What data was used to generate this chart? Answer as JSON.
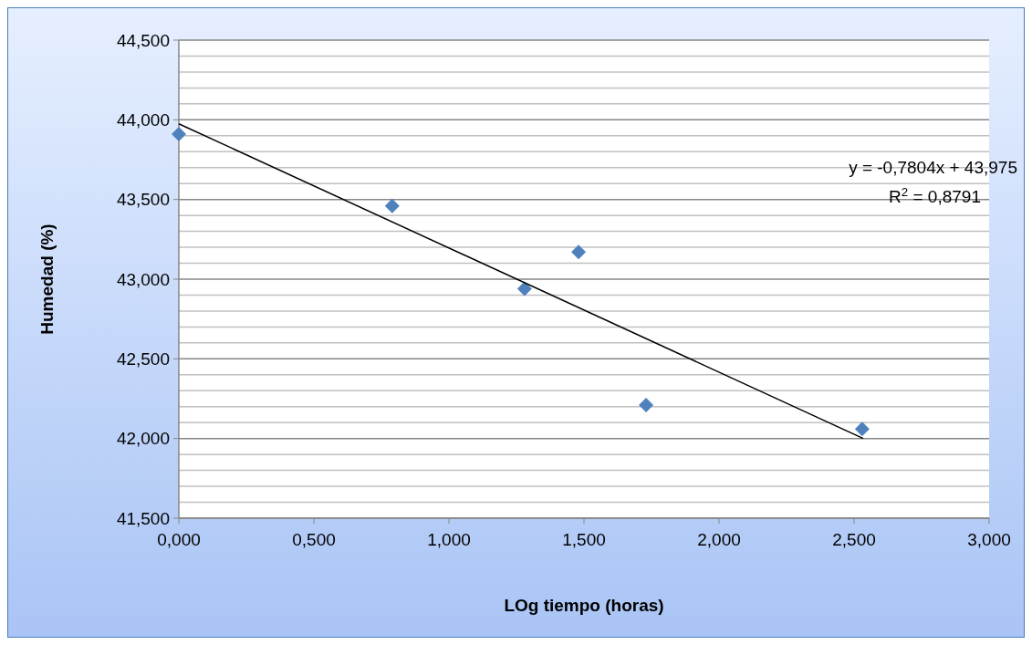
{
  "chart_data": {
    "type": "scatter",
    "xlabel": "LOg tiempo (horas)",
    "ylabel": "Humedad (%)",
    "x": [
      0,
      0.79,
      1.28,
      1.48,
      1.73,
      2.53
    ],
    "series": [
      {
        "color": "#4f81bd",
        "marker": "diamond",
        "values": [
          43.91,
          43.46,
          42.94,
          43.17,
          42.21,
          42.06
        ]
      },
      {
        "type": "line",
        "marker": "none",
        "color": "#000000",
        "x": [
          0,
          2.534
        ],
        "values": [
          43.975,
          42.0
        ]
      }
    ],
    "grid": "y",
    "xlim": [
      0,
      3
    ],
    "xticks": [
      {
        "value": 0,
        "label": "0,000"
      },
      {
        "value": 0.5,
        "label": "0,500"
      },
      {
        "value": 1,
        "label": "1,000"
      },
      {
        "value": 1.5,
        "label": "1,500"
      },
      {
        "value": 2,
        "label": "2,000"
      },
      {
        "value": 2.5,
        "label": "2,500"
      },
      {
        "value": 3,
        "label": "3,000"
      }
    ],
    "ylim": [
      41.5,
      44.5
    ],
    "yticks": [
      {
        "value": 41.5,
        "label": "41,500"
      },
      {
        "value": 41.6,
        "label": null
      },
      {
        "value": 41.7,
        "label": null
      },
      {
        "value": 41.8,
        "label": null
      },
      {
        "value": 41.9,
        "label": null
      },
      {
        "value": 42,
        "label": "42,000"
      },
      {
        "value": 42.1,
        "label": null
      },
      {
        "value": 42.2,
        "label": null
      },
      {
        "value": 42.3,
        "label": null
      },
      {
        "value": 42.4,
        "label": null
      },
      {
        "value": 42.5,
        "label": "42,500"
      },
      {
        "value": 42.6,
        "label": null
      },
      {
        "value": 42.7,
        "label": null
      },
      {
        "value": 42.8,
        "label": null
      },
      {
        "value": 42.9,
        "label": null
      },
      {
        "value": 43,
        "label": "43,000"
      },
      {
        "value": 43.1,
        "label": null
      },
      {
        "value": 43.2,
        "label": null
      },
      {
        "value": 43.3,
        "label": null
      },
      {
        "value": 43.4,
        "label": null
      },
      {
        "value": 43.5,
        "label": "43,500"
      },
      {
        "value": 43.6,
        "label": null
      },
      {
        "value": 43.7,
        "label": null
      },
      {
        "value": 43.8,
        "label": null
      },
      {
        "value": 43.9,
        "label": null
      },
      {
        "value": 44,
        "label": "44,000"
      },
      {
        "value": 44.1,
        "label": null
      },
      {
        "value": 44.2,
        "label": null
      },
      {
        "value": 44.3,
        "label": null
      },
      {
        "value": 44.4,
        "label": null
      },
      {
        "value": 44.5,
        "label": "44,500"
      }
    ],
    "annotations": [
      "y = -0,7804x + 43,975",
      "R$^{2}$ = 0,8791"
    ]
  }
}
